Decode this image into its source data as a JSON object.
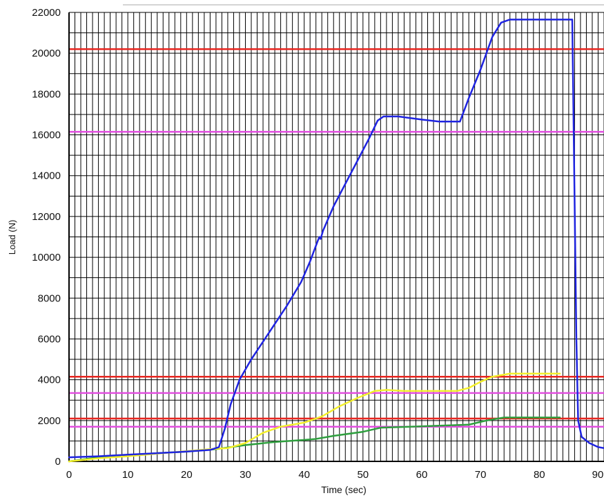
{
  "chart_data": {
    "type": "line",
    "title": "",
    "xlabel": "Time (sec)",
    "ylabel": "Load (N)",
    "xlim": [
      0,
      91
    ],
    "ylim": [
      0,
      22000
    ],
    "x_ticks": [
      0,
      10,
      20,
      30,
      40,
      50,
      60,
      70,
      80,
      90
    ],
    "x_tick_labels": [
      "0",
      "10",
      "20",
      "30",
      "40",
      "50",
      "60",
      "70",
      "80",
      "90"
    ],
    "y_ticks": [
      0,
      2000,
      4000,
      6000,
      8000,
      10000,
      12000,
      14000,
      16000,
      18000,
      20000,
      22000
    ],
    "y_tick_labels": [
      "0",
      "2000",
      "4000",
      "6000",
      "8000",
      "10000",
      "12000",
      "14000",
      "16000",
      "18000",
      "20000",
      "22000"
    ],
    "grid": {
      "vertical": true,
      "vertical_step": 1,
      "horizontal": true,
      "horizontal_step": 1000,
      "color": "#000000"
    },
    "legend": "none",
    "reference_lines": [
      {
        "y": 20200,
        "color": "#e8251f"
      },
      {
        "y": 16150,
        "color": "#e24de0"
      },
      {
        "y": 4150,
        "color": "#e8251f"
      },
      {
        "y": 3350,
        "color": "#e24de0"
      },
      {
        "y": 2100,
        "color": "#e8251f"
      },
      {
        "y": 1700,
        "color": "#e24de0"
      }
    ],
    "series": [
      {
        "color": "#1f24e0",
        "points": [
          [
            0,
            200
          ],
          [
            5,
            250
          ],
          [
            10,
            330
          ],
          [
            15,
            400
          ],
          [
            20,
            480
          ],
          [
            24,
            560
          ],
          [
            25.5,
            700
          ],
          [
            26.5,
            1600
          ],
          [
            27.5,
            2800
          ],
          [
            29,
            4000
          ],
          [
            31,
            5000
          ],
          [
            34,
            6300
          ],
          [
            37,
            7600
          ],
          [
            39.5,
            8800
          ],
          [
            41,
            9800
          ],
          [
            42.3,
            10800
          ],
          [
            42.6,
            11000
          ],
          [
            42.8,
            10900
          ],
          [
            43.2,
            11300
          ],
          [
            45,
            12500
          ],
          [
            47,
            13600
          ],
          [
            49,
            14700
          ],
          [
            51,
            15800
          ],
          [
            52.5,
            16700
          ],
          [
            53.5,
            16900
          ],
          [
            56,
            16900
          ],
          [
            60,
            16750
          ],
          [
            63,
            16650
          ],
          [
            66.5,
            16650
          ],
          [
            68,
            17800
          ],
          [
            70,
            19200
          ],
          [
            72,
            20800
          ],
          [
            73.5,
            21500
          ],
          [
            75,
            21650
          ],
          [
            80,
            21650
          ],
          [
            85.6,
            21650
          ],
          [
            85.9,
            15000
          ],
          [
            86.3,
            6000
          ],
          [
            86.6,
            2000
          ],
          [
            87.2,
            1200
          ],
          [
            88.5,
            900
          ],
          [
            90,
            700
          ],
          [
            91,
            650
          ]
        ]
      },
      {
        "color": "#f3ef2b",
        "points": [
          [
            0,
            0
          ],
          [
            5,
            150
          ],
          [
            10,
            250
          ],
          [
            15,
            380
          ],
          [
            20,
            500
          ],
          [
            24,
            600
          ],
          [
            27,
            650
          ],
          [
            30,
            900
          ],
          [
            33,
            1400
          ],
          [
            36,
            1700
          ],
          [
            40,
            1900
          ],
          [
            43,
            2200
          ],
          [
            46,
            2700
          ],
          [
            49,
            3100
          ],
          [
            52,
            3450
          ],
          [
            54,
            3500
          ],
          [
            57,
            3450
          ],
          [
            60,
            3450
          ],
          [
            66,
            3450
          ],
          [
            68,
            3600
          ],
          [
            70,
            3900
          ],
          [
            72,
            4150
          ],
          [
            75,
            4300
          ],
          [
            80,
            4300
          ],
          [
            83.5,
            4300
          ]
        ]
      },
      {
        "color": "#2e9f3e",
        "points": [
          [
            0,
            0
          ],
          [
            5,
            200
          ],
          [
            10,
            300
          ],
          [
            15,
            400
          ],
          [
            20,
            480
          ],
          [
            25,
            600
          ],
          [
            30,
            800
          ],
          [
            35,
            950
          ],
          [
            40,
            1050
          ],
          [
            42,
            1100
          ],
          [
            45,
            1250
          ],
          [
            50,
            1450
          ],
          [
            53,
            1650
          ],
          [
            58,
            1700
          ],
          [
            63,
            1750
          ],
          [
            68,
            1800
          ],
          [
            71,
            2000
          ],
          [
            74,
            2150
          ],
          [
            80,
            2150
          ],
          [
            83.5,
            2150
          ]
        ]
      }
    ]
  }
}
